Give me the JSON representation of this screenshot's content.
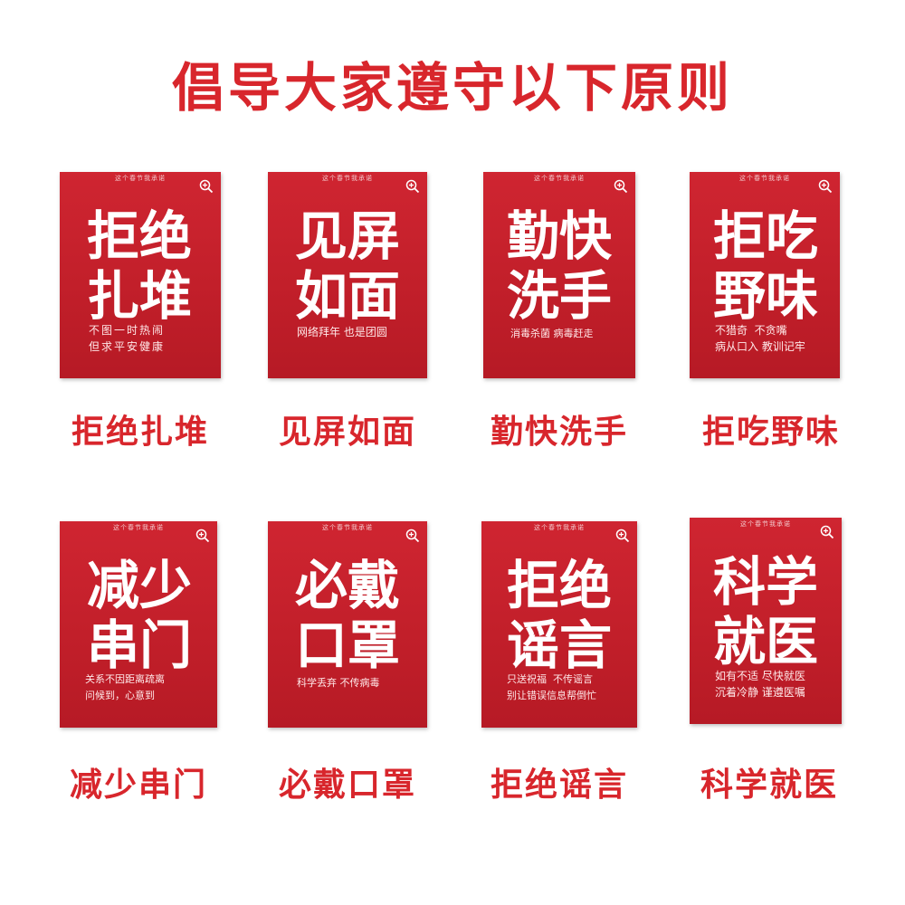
{
  "title": "倡导大家遵守以下原则",
  "cards": [
    {
      "top": "这个春节我承诺",
      "line1": "拒绝",
      "line2": "扎堆",
      "sub1": "不图一时热闹",
      "sub2": "但求平安健康",
      "caption": "拒绝扎堆"
    },
    {
      "top": "这个春节我承诺",
      "line1": "见屏",
      "line2": "如面",
      "sub1": "网络拜年 也是团圆",
      "sub2": "",
      "caption": "见屏如面"
    },
    {
      "top": "这个春节我承诺",
      "line1": "勤快",
      "line2": "洗手",
      "sub1": "消毒杀菌 病毒赶走",
      "sub2": "",
      "caption": "勤快洗手"
    },
    {
      "top": "这个春节我承诺",
      "line1": "拒吃",
      "line2": "野味",
      "sub1": "不猎奇  不贪嘴",
      "sub2": "病从口入 教训记牢",
      "caption": "拒吃野味"
    },
    {
      "top": "这个春节我承诺",
      "line1": "减少",
      "line2": "串门",
      "sub1": "关系不因距离疏离",
      "sub2": "问候到，心意到",
      "caption": "减少串门"
    },
    {
      "top": "这个春节我承诺",
      "line1": "必戴",
      "line2": "口罩",
      "sub1": "科学丢弃 不传病毒",
      "sub2": "",
      "caption": "必戴口罩"
    },
    {
      "top": "这个春节我承诺",
      "line1": "拒绝",
      "line2": "谣言",
      "sub1": "只送祝福  不传谣言",
      "sub2": "别让错误信息帮倒忙",
      "caption": "拒绝谣言"
    },
    {
      "top": "这个春节我承诺",
      "line1": "科学",
      "line2": "就医",
      "sub1": "如有不适 尽快就医",
      "sub2": "沉着冷静 谨遵医嘱",
      "caption": "科学就医"
    }
  ],
  "colors": {
    "accent": "#d8262c",
    "card": "#c72330"
  },
  "icons": {
    "zoom": "zoom-in-icon"
  }
}
